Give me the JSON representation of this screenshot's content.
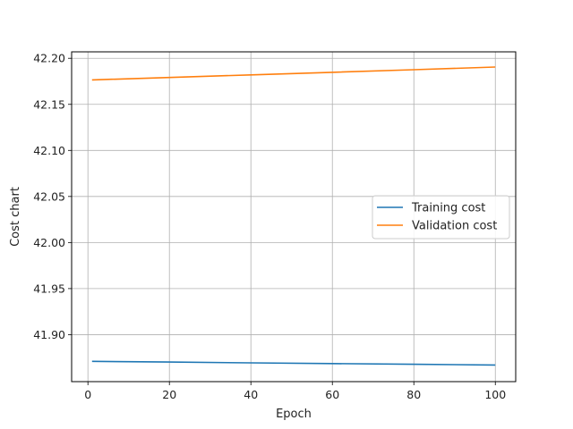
{
  "chart_data": {
    "type": "line",
    "title": "",
    "xlabel": "Epoch",
    "ylabel": "Cost chart",
    "xlim": [
      -4.0,
      105.0
    ],
    "ylim": [
      41.849,
      42.207
    ],
    "x_ticks": [
      0,
      20,
      40,
      60,
      80,
      100
    ],
    "x_tick_labels": [
      "0",
      "20",
      "40",
      "60",
      "80",
      "100"
    ],
    "y_ticks": [
      41.9,
      41.95,
      42.0,
      42.05,
      42.1,
      42.15,
      42.2
    ],
    "y_tick_labels": [
      "41.90",
      "41.95",
      "42.00",
      "42.05",
      "42.10",
      "42.15",
      "42.20"
    ],
    "grid": true,
    "legend_position": "center-right",
    "series": [
      {
        "name": "Training cost",
        "color": "#1f77b4",
        "x": [
          1,
          20,
          40,
          60,
          80,
          100
        ],
        "y": [
          41.871,
          41.8702,
          41.8694,
          41.8686,
          41.8678,
          41.867
        ]
      },
      {
        "name": "Validation cost",
        "color": "#ff7f0e",
        "x": [
          1,
          20,
          40,
          60,
          80,
          100
        ],
        "y": [
          42.1765,
          42.1792,
          42.182,
          42.1848,
          42.1876,
          42.1905
        ]
      }
    ]
  }
}
